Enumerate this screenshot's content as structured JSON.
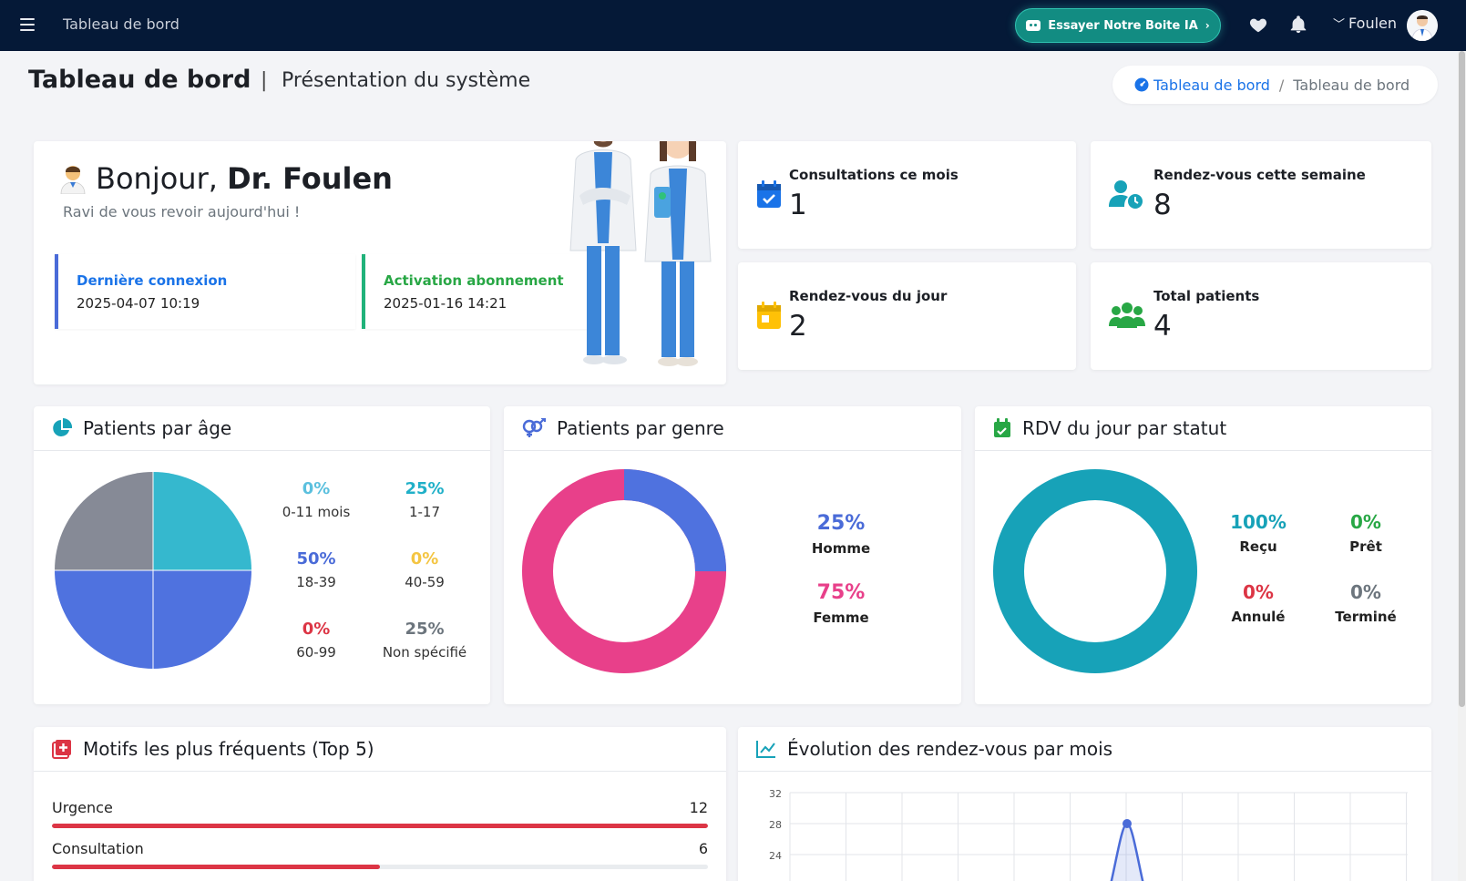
{
  "nav": {
    "title": "Tableau de bord",
    "ai_button": "Essayer Notre Boite IA",
    "user_name": "Foulen"
  },
  "header": {
    "title": "Tableau de bord",
    "separator": "|",
    "subtitle": "Présentation du système",
    "breadcrumb": {
      "home": "Tableau de bord",
      "separator": "/",
      "current": "Tableau de bord"
    }
  },
  "welcome": {
    "greeting": "Bonjour,",
    "name": "Dr. Foulen",
    "subtitle": "Ravi de vous revoir aujourd'hui !",
    "last_login_label": "Dernière connexion",
    "last_login_value": "2025-04-07 10:19",
    "activation_label": "Activation abonnement",
    "activation_value": "2025-01-16 14:21"
  },
  "stats": [
    {
      "label": "Consultations ce mois",
      "value": "1",
      "icon": "calendar-check-icon",
      "color": "#1a73e8"
    },
    {
      "label": "Rendez-vous cette semaine",
      "value": "8",
      "icon": "user-clock-icon",
      "color": "#17a2b8"
    },
    {
      "label": "Rendez-vous du jour",
      "value": "2",
      "icon": "calendar-day-icon",
      "color": "#ffc107"
    },
    {
      "label": "Total patients",
      "value": "4",
      "icon": "users-icon",
      "color": "#28a745"
    }
  ],
  "age_panel": {
    "title": "Patients par âge",
    "items": [
      {
        "pct": "0%",
        "name": "0-11 mois",
        "color": "#5bc0de",
        "value": 0
      },
      {
        "pct": "25%",
        "name": "1-17",
        "color": "#20b0c8",
        "value": 25
      },
      {
        "pct": "50%",
        "name": "18-39",
        "color": "#4a6bd8",
        "value": 50
      },
      {
        "pct": "0%",
        "name": "40-59",
        "color": "#f4c542",
        "value": 0
      },
      {
        "pct": "0%",
        "name": "60-99",
        "color": "#dc3545",
        "value": 0
      },
      {
        "pct": "25%",
        "name": "Non spécifié",
        "color": "#6c757d",
        "value": 25
      }
    ]
  },
  "gender_panel": {
    "title": "Patients par genre",
    "items": [
      {
        "pct": "25%",
        "name": "Homme",
        "color": "#4a6bd8",
        "value": 25
      },
      {
        "pct": "75%",
        "name": "Femme",
        "color": "#e8408a",
        "value": 75
      }
    ]
  },
  "status_panel": {
    "title": "RDV du jour par statut",
    "items": [
      {
        "pct": "100%",
        "name": "Reçu",
        "color": "#17a2b8",
        "value": 100
      },
      {
        "pct": "0%",
        "name": "Prêt",
        "color": "#28a745",
        "value": 0
      },
      {
        "pct": "0%",
        "name": "Annulé",
        "color": "#dc3545",
        "value": 0
      },
      {
        "pct": "0%",
        "name": "Terminé",
        "color": "#6c757d",
        "value": 0
      }
    ]
  },
  "motifs_panel": {
    "title": "Motifs les plus fréquents (Top 5)",
    "max": 12,
    "items": [
      {
        "label": "Urgence",
        "value": 12
      },
      {
        "label": "Consultation",
        "value": 6
      }
    ]
  },
  "evolution_panel": {
    "title": "Évolution des rendez-vous par mois"
  },
  "chart_data": {
    "type": "line",
    "title": "",
    "y_ticks": [
      "32",
      "28",
      "24"
    ],
    "ylim": [
      24,
      32
    ],
    "peak_value": 28,
    "color": "#4a6bd8"
  }
}
